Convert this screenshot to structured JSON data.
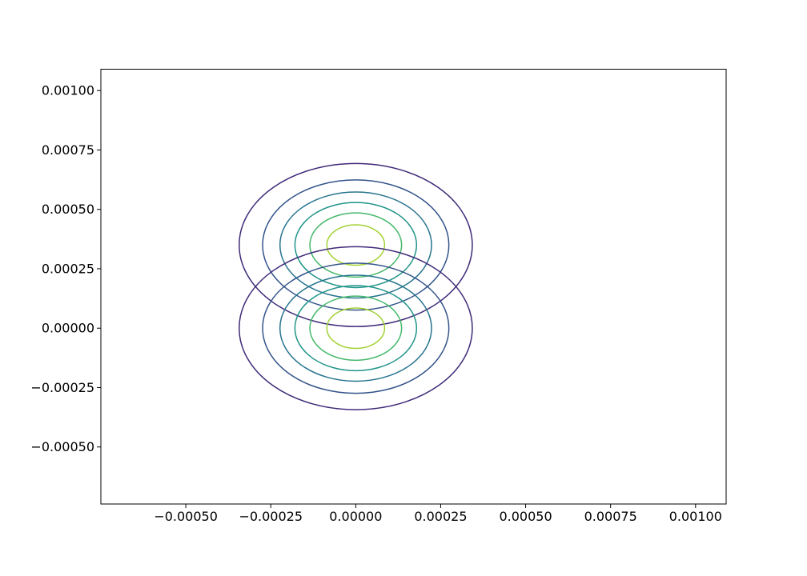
{
  "chart_data": {
    "type": "contour",
    "title": "",
    "xlabel": "",
    "ylabel": "",
    "xlim": [
      -0.00075,
      0.00109
    ],
    "ylim": [
      -0.00074,
      0.00109
    ],
    "grid": false,
    "x_ticks": [
      {
        "value": -0.0005,
        "label": "−0.00050"
      },
      {
        "value": -0.00025,
        "label": "−0.00025"
      },
      {
        "value": 0.0,
        "label": "0.00000"
      },
      {
        "value": 0.00025,
        "label": "0.00025"
      },
      {
        "value": 0.0005,
        "label": "0.00050"
      },
      {
        "value": 0.00075,
        "label": "0.00075"
      },
      {
        "value": 0.001,
        "label": "0.00100"
      }
    ],
    "y_ticks": [
      {
        "value": -0.0005,
        "label": "−0.00050"
      },
      {
        "value": -0.00025,
        "label": "−0.00025"
      },
      {
        "value": 0.0,
        "label": "0.00000"
      },
      {
        "value": 0.00025,
        "label": "0.00025"
      },
      {
        "value": 0.0005,
        "label": "0.00050"
      },
      {
        "value": 0.00075,
        "label": "0.00075"
      },
      {
        "value": 0.001,
        "label": "0.00100"
      }
    ],
    "contour_groups": [
      {
        "center": [
          0.0,
          0.00035
        ],
        "levels": [
          {
            "rx": 0.000343,
            "ry": 0.000343,
            "color": "#3f2a78"
          },
          {
            "rx": 0.000274,
            "ry": 0.000274,
            "color": "#33538a"
          },
          {
            "rx": 0.000223,
            "ry": 0.000223,
            "color": "#27748e"
          },
          {
            "rx": 0.000179,
            "ry": 0.000179,
            "color": "#1f9489"
          },
          {
            "rx": 0.000135,
            "ry": 0.000135,
            "color": "#46b86b"
          },
          {
            "rx": 8.5e-05,
            "ry": 8.5e-05,
            "color": "#a3d235"
          }
        ]
      },
      {
        "center": [
          0.0,
          0.0
        ],
        "levels": [
          {
            "rx": 0.000343,
            "ry": 0.000343,
            "color": "#3f2a78"
          },
          {
            "rx": 0.000274,
            "ry": 0.000274,
            "color": "#33538a"
          },
          {
            "rx": 0.000223,
            "ry": 0.000223,
            "color": "#27748e"
          },
          {
            "rx": 0.000179,
            "ry": 0.000179,
            "color": "#1f9489"
          },
          {
            "rx": 0.000135,
            "ry": 0.000135,
            "color": "#46b86b"
          },
          {
            "rx": 8.5e-05,
            "ry": 8.5e-05,
            "color": "#a3d235"
          }
        ]
      }
    ]
  }
}
